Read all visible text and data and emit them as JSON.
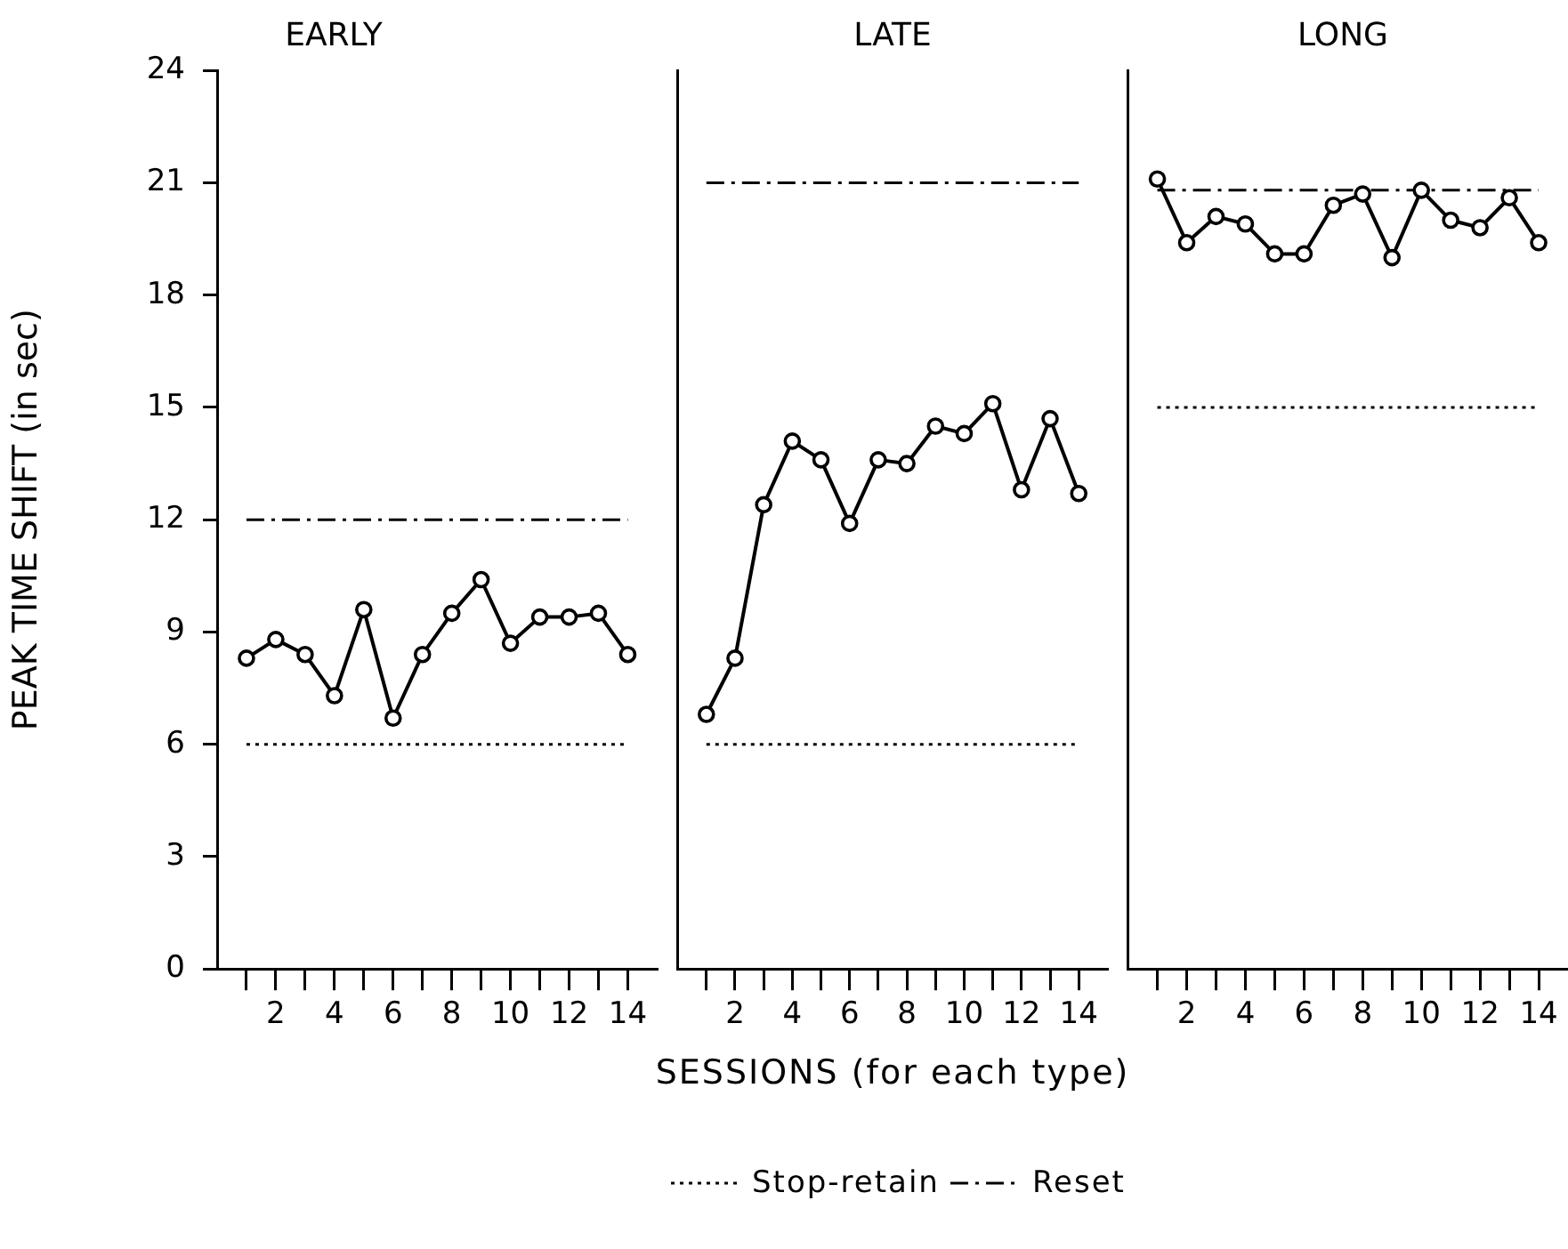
{
  "chart_data": [
    {
      "type": "line",
      "title": "EARLY",
      "xlabel": "SESSIONS (for each type)",
      "ylabel": "PEAK TIME SHIFT (in sec)",
      "legend": "bottom",
      "marker": "circle",
      "xlim": [
        0,
        15
      ],
      "ylim": [
        0,
        24
      ],
      "yticks": [
        0,
        3,
        6,
        9,
        12,
        15,
        18,
        21,
        24
      ],
      "xticks": [
        {
          "value": 1,
          "label": null
        },
        2,
        {
          "value": 3,
          "label": null
        },
        4,
        {
          "value": 5,
          "label": null
        },
        6,
        {
          "value": 7,
          "label": null
        },
        8,
        {
          "value": 9,
          "label": null
        },
        10,
        {
          "value": 11,
          "label": null
        },
        12,
        {
          "value": 13,
          "label": null
        },
        14
      ],
      "series": [
        {
          "color": "#000000",
          "x": [
            1,
            2,
            3,
            4,
            5,
            6,
            7,
            8,
            9,
            10,
            11,
            12,
            13,
            14
          ],
          "values": [
            8.3,
            8.8,
            8.4,
            7.3,
            9.6,
            6.7,
            8.4,
            9.5,
            10.4,
            8.7,
            9.4,
            9.4,
            9.5,
            8.4
          ]
        },
        {
          "name": "Stop-retain",
          "color": "#000000",
          "line_style": "dotted",
          "marker": "none",
          "x": [
            1,
            14
          ],
          "values": [
            6,
            6
          ]
        },
        {
          "name": "Reset",
          "color": "#000000",
          "line_style": "dashed",
          "marker": "none",
          "x": [
            1,
            14
          ],
          "values": [
            12,
            12
          ]
        }
      ]
    },
    {
      "type": "line",
      "title": "LATE",
      "marker": "circle",
      "tick_labels": "x",
      "xlim": [
        0,
        15
      ],
      "ylim": [
        0,
        24
      ],
      "xticks": [
        {
          "value": 1,
          "label": null
        },
        2,
        {
          "value": 3,
          "label": null
        },
        4,
        {
          "value": 5,
          "label": null
        },
        6,
        {
          "value": 7,
          "label": null
        },
        8,
        {
          "value": 9,
          "label": null
        },
        10,
        {
          "value": 11,
          "label": null
        },
        12,
        {
          "value": 13,
          "label": null
        },
        14
      ],
      "series": [
        {
          "color": "#000000",
          "x": [
            1,
            2,
            3,
            4,
            5,
            6,
            7,
            8,
            9,
            10,
            11,
            12,
            13,
            14
          ],
          "values": [
            6.8,
            8.3,
            12.4,
            14.1,
            13.6,
            11.9,
            13.6,
            13.5,
            14.5,
            14.3,
            15.1,
            12.8,
            14.7,
            12.7
          ]
        },
        {
          "color": "#000000",
          "line_style": "dotted",
          "marker": "none",
          "x": [
            1,
            14
          ],
          "values": [
            6,
            6
          ]
        },
        {
          "color": "#000000",
          "line_style": "dashed",
          "marker": "none",
          "x": [
            1,
            14
          ],
          "values": [
            21,
            21
          ]
        }
      ]
    },
    {
      "type": "line",
      "title": "LONG",
      "marker": "circle",
      "tick_labels": "x",
      "xlim": [
        0,
        15
      ],
      "ylim": [
        0,
        24
      ],
      "xticks": [
        {
          "value": 1,
          "label": null
        },
        2,
        {
          "value": 3,
          "label": null
        },
        4,
        {
          "value": 5,
          "label": null
        },
        6,
        {
          "value": 7,
          "label": null
        },
        8,
        {
          "value": 9,
          "label": null
        },
        10,
        {
          "value": 11,
          "label": null
        },
        12,
        {
          "value": 13,
          "label": null
        },
        14
      ],
      "series": [
        {
          "color": "#000000",
          "x": [
            1,
            2,
            3,
            4,
            5,
            6,
            7,
            8,
            9,
            10,
            11,
            12,
            13,
            14
          ],
          "values": [
            21.1,
            19.4,
            20.1,
            19.9,
            19.1,
            19.1,
            20.4,
            20.7,
            19.0,
            20.8,
            20.0,
            19.8,
            20.6,
            19.4
          ]
        },
        {
          "color": "#000000",
          "line_style": "dotted",
          "marker": "none",
          "x": [
            1,
            14
          ],
          "values": [
            15,
            15
          ]
        },
        {
          "color": "#000000",
          "line_style": "dashed",
          "marker": "none",
          "x": [
            1,
            14
          ],
          "values": [
            20.8,
            20.8
          ]
        }
      ]
    }
  ]
}
